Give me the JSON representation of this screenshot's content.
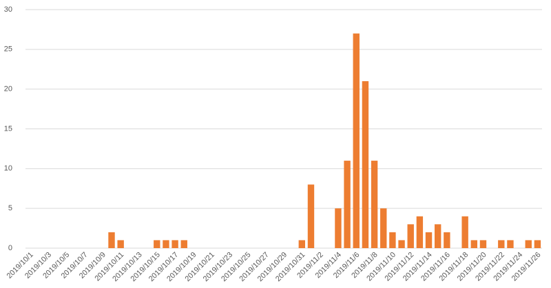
{
  "chart_data": {
    "type": "bar",
    "categories": [
      "2019/10/1",
      null,
      "2019/10/3",
      null,
      "2019/10/5",
      null,
      "2019/10/7",
      null,
      "2019/10/9",
      null,
      "2019/10/11",
      null,
      "2019/10/13",
      null,
      "2019/10/15",
      null,
      "2019/10/17",
      null,
      "2019/10/19",
      null,
      "2019/10/21",
      null,
      "2019/10/23",
      null,
      "2019/10/25",
      null,
      "2019/10/27",
      null,
      "2019/10/29",
      null,
      "2019/10/31",
      null,
      "2019/11/2",
      null,
      "2019/11/4",
      null,
      "2019/11/6",
      null,
      "2019/11/8",
      null,
      "2019/11/10",
      null,
      "2019/11/12",
      null,
      "2019/11/14",
      null,
      "2019/11/16",
      null,
      "2019/11/18",
      null,
      "2019/11/20",
      null,
      "2019/11/22",
      null,
      "2019/11/24",
      null,
      "2019/11/26"
    ],
    "values": [
      0,
      0,
      0,
      0,
      0,
      0,
      0,
      0,
      0,
      2,
      1,
      0,
      0,
      0,
      1,
      1,
      1,
      1,
      0,
      0,
      0,
      0,
      0,
      0,
      0,
      0,
      0,
      0,
      0,
      0,
      1,
      8,
      0,
      0,
      5,
      11,
      27,
      21,
      11,
      5,
      2,
      1,
      3,
      4,
      2,
      3,
      2,
      0,
      4,
      1,
      1,
      0,
      1,
      1,
      0,
      1,
      1
    ],
    "color": "#ed7d31",
    "ylim": [
      0,
      30
    ],
    "yticks": [
      0,
      5,
      10,
      15,
      20,
      25,
      30
    ],
    "grid": true
  }
}
